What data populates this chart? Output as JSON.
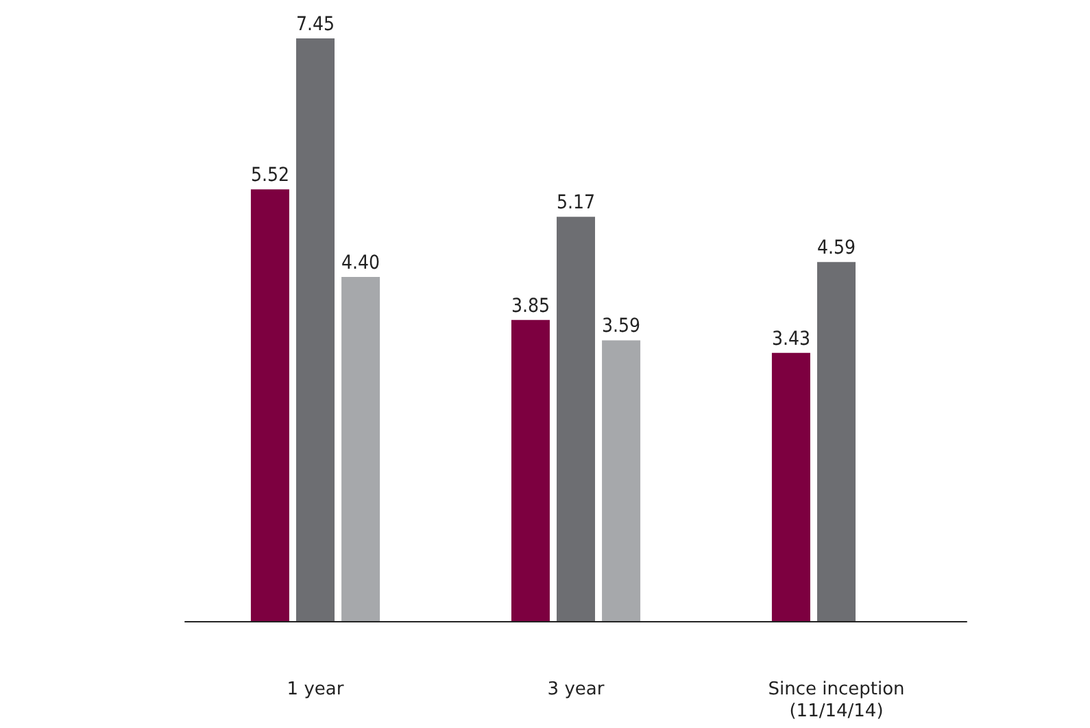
{
  "chart_data": {
    "type": "bar",
    "categories": [
      "1 year",
      "3 year",
      "Since inception\n(11/14/14)"
    ],
    "series": [
      {
        "color": "#7d0040",
        "values": [
          5.52,
          3.85,
          3.43
        ],
        "value_labels": [
          "5.52",
          "3.85",
          "3.43"
        ]
      },
      {
        "color": "#6d6e72",
        "values": [
          7.45,
          5.17,
          4.59
        ],
        "value_labels": [
          "7.45",
          "5.17",
          "4.59"
        ]
      },
      {
        "color": "#a6a8ab",
        "values": [
          4.4,
          3.59,
          null
        ],
        "value_labels": [
          "4.40",
          "3.59",
          null
        ]
      }
    ]
  }
}
